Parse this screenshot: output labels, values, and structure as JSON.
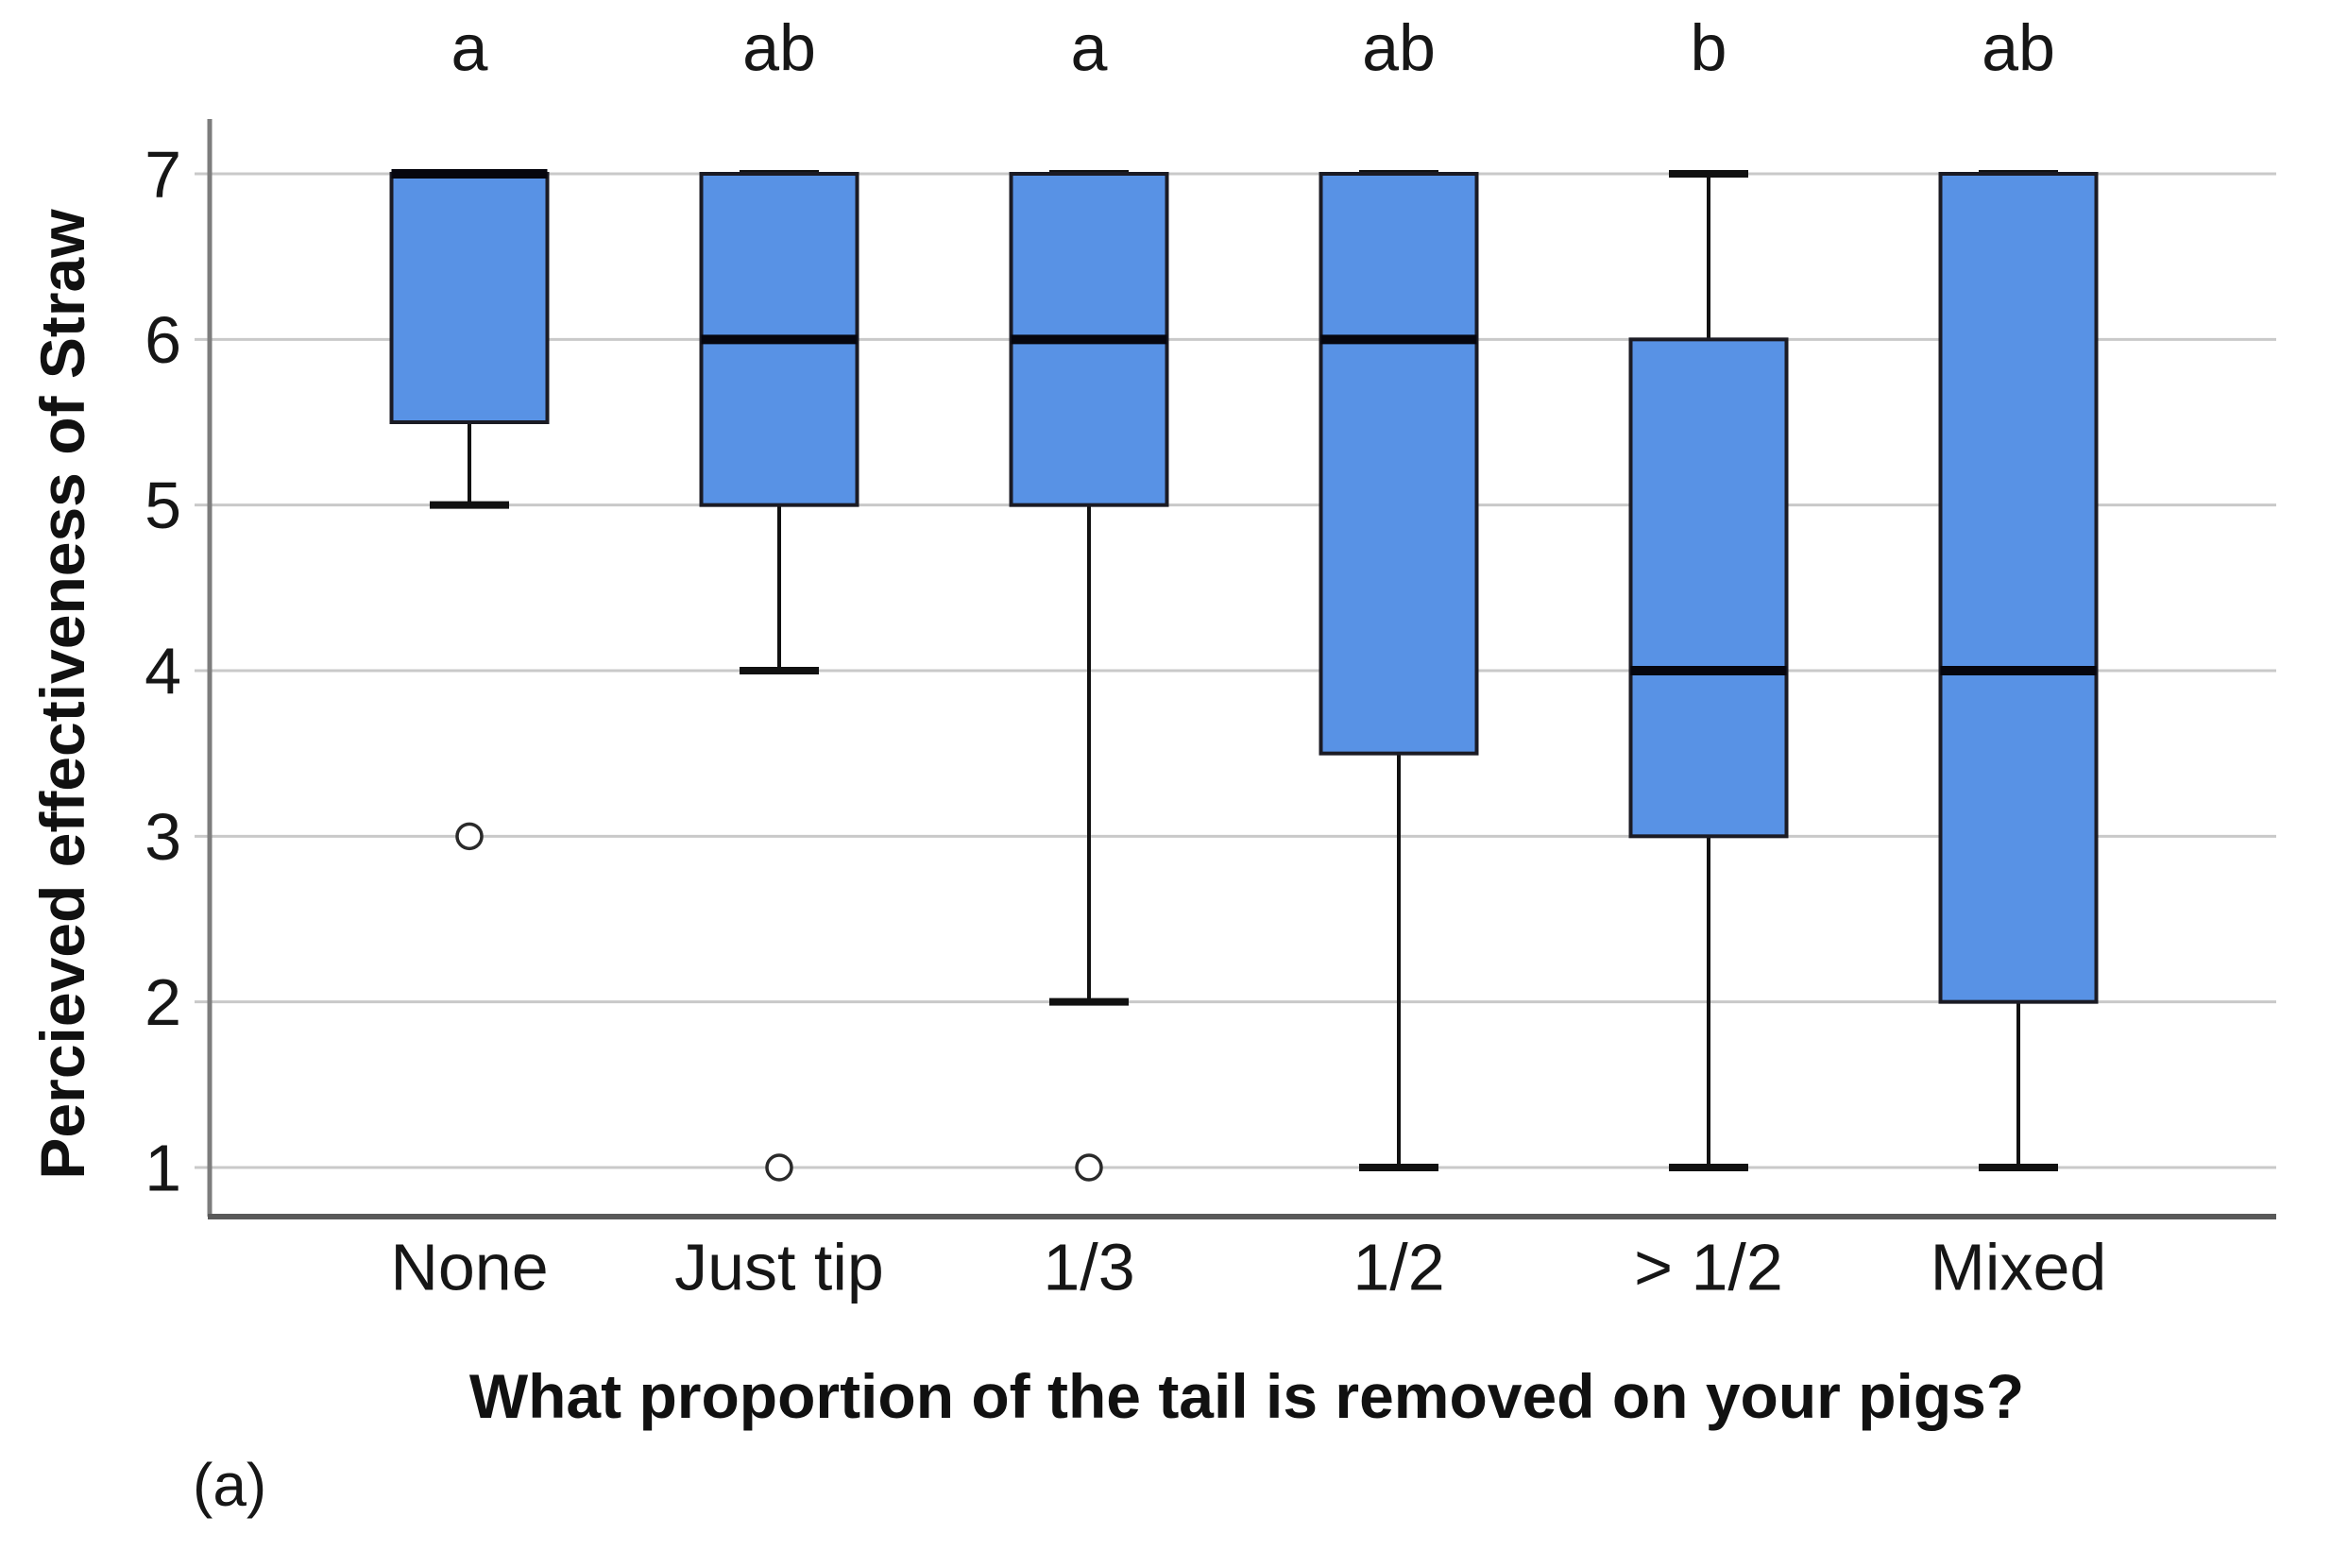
{
  "figure": {
    "caption": "(a)",
    "background": "#ffffff"
  },
  "chart_data": {
    "type": "boxplot",
    "title": "",
    "xlabel": "What proportion of the tail is removed on your pigs?",
    "ylabel": "Percieved effectiveness of Straw",
    "ylim": [
      1,
      7
    ],
    "yticks": [
      1,
      2,
      3,
      4,
      5,
      6,
      7
    ],
    "grid": true,
    "legend": "none",
    "categories": [
      "None",
      "Just tip",
      "1/3",
      "1/2",
      "> 1/2",
      "Mixed"
    ],
    "significance_letters": [
      "a",
      "ab",
      "a",
      "ab",
      "b",
      "ab"
    ],
    "series": [
      {
        "category": "None",
        "letter": "a",
        "whisker_low": 5,
        "q1": 5.5,
        "median": 7,
        "q3": 7,
        "whisker_high": 7,
        "outliers": [
          3
        ]
      },
      {
        "category": "Just tip",
        "letter": "ab",
        "whisker_low": 4,
        "q1": 5,
        "median": 6,
        "q3": 7,
        "whisker_high": 7,
        "outliers": [
          1
        ]
      },
      {
        "category": "1/3",
        "letter": "a",
        "whisker_low": 2,
        "q1": 5,
        "median": 6,
        "q3": 7,
        "whisker_high": 7,
        "outliers": [
          1
        ]
      },
      {
        "category": "1/2",
        "letter": "ab",
        "whisker_low": 1,
        "q1": 3.5,
        "median": 6,
        "q3": 7,
        "whisker_high": 7,
        "outliers": []
      },
      {
        "category": "> 1/2",
        "letter": "b",
        "whisker_low": 1,
        "q1": 3,
        "median": 4,
        "q3": 6,
        "whisker_high": 7,
        "outliers": []
      },
      {
        "category": "Mixed",
        "letter": "ab",
        "whisker_low": 1,
        "q1": 2,
        "median": 4,
        "q3": 7,
        "whisker_high": 7,
        "outliers": []
      }
    ],
    "colors": {
      "box_fill": "#5892E5",
      "box_border": "#1b1b24",
      "median": "#06060e",
      "whisker": "#111111",
      "outlier_stroke": "#2a2a2a",
      "gridline": "#c9c9c9",
      "axis_y": "#7d7d7d",
      "axis_x": "#595959",
      "text": "#161616"
    }
  }
}
